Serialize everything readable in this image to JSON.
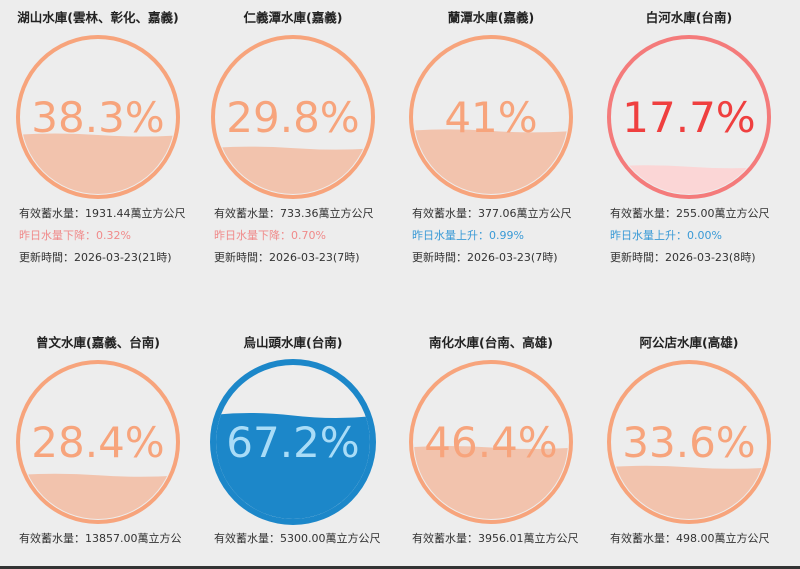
{
  "reservoirs": [
    {
      "name": "湖山水庫(雲林、彰化、嘉義)",
      "percent_label": "38.3%",
      "percent": 38.3,
      "storage": "有效蓄水量：1931.44萬立方公尺",
      "change": "昨日水量下降：0.32%",
      "change_dir": "down",
      "updated": "更新時間：2026-03-23(21時)",
      "theme": "normal"
    },
    {
      "name": "仁義潭水庫(嘉義)",
      "percent_label": "29.8%",
      "percent": 29.8,
      "storage": "有效蓄水量：733.36萬立方公尺",
      "change": "昨日水量下降：0.70%",
      "change_dir": "down",
      "updated": "更新時間：2026-03-23(7時)",
      "theme": "normal"
    },
    {
      "name": "蘭潭水庫(嘉義)",
      "percent_label": "41%",
      "percent": 41,
      "storage": "有效蓄水量：377.06萬立方公尺",
      "change": "昨日水量上升：0.99%",
      "change_dir": "up",
      "updated": "更新時間：2026-03-23(7時)",
      "theme": "normal"
    },
    {
      "name": "白河水庫(台南)",
      "percent_label": "17.7%",
      "percent": 17.7,
      "storage": "有效蓄水量：255.00萬立方公尺",
      "change": "昨日水量上升：0.00%",
      "change_dir": "up",
      "updated": "更新時間：2026-03-23(8時)",
      "theme": "low"
    },
    {
      "name": "曾文水庫(嘉義、台南)",
      "percent_label": "28.4%",
      "percent": 28.4,
      "storage": "有效蓄水量：13857.00萬立方公",
      "theme": "normal"
    },
    {
      "name": "烏山頭水庫(台南)",
      "percent_label": "67.2%",
      "percent": 67.2,
      "storage": "有效蓄水量：5300.00萬立方公尺",
      "theme": "high"
    },
    {
      "name": "南化水庫(台南、高雄)",
      "percent_label": "46.4%",
      "percent": 46.4,
      "storage": "有效蓄水量：3956.01萬立方公尺",
      "theme": "normal"
    },
    {
      "name": "阿公店水庫(高雄)",
      "percent_label": "33.6%",
      "percent": 33.6,
      "storage": "有效蓄水量：498.00萬立方公尺",
      "theme": "normal"
    }
  ],
  "themes": {
    "normal": {
      "ring": "#f7a47c",
      "fill": "#f2c3ad",
      "text": "#f7a47c"
    },
    "low": {
      "ring": "#f47b7b",
      "fill": "#fbd6d6",
      "text": "#ef3f3f"
    },
    "high": {
      "ring": "#1c87c9",
      "fill": "#1c87c9",
      "text": "#a9dcf7"
    }
  }
}
